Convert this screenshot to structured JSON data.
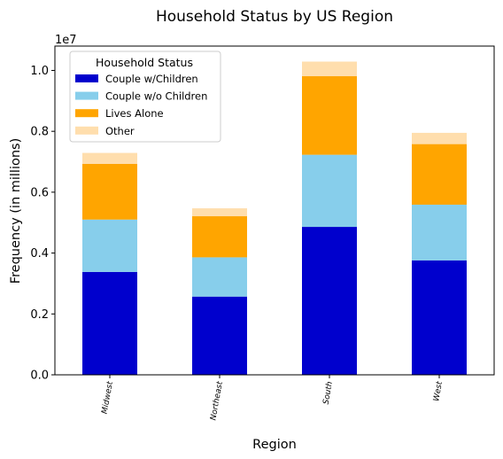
{
  "chart_data": {
    "type": "bar",
    "stacked": true,
    "title": "Household Status by US Region",
    "xlabel": "Region",
    "ylabel": "Frequency (in millions)",
    "offset_text": "1e7",
    "categories": [
      "Midwest",
      "Northeast",
      "South",
      "West"
    ],
    "ylim": [
      0,
      10800000
    ],
    "yticks": [
      0,
      2000000,
      4000000,
      6000000,
      8000000,
      10000000
    ],
    "ytick_labels": [
      "0.0",
      "0.2",
      "0.4",
      "0.6",
      "0.8",
      "1.0"
    ],
    "legend": {
      "title": "Household Status",
      "placement": "upper-left"
    },
    "grid": false,
    "series": [
      {
        "name": "Couple w/Children",
        "color": "#0000cd",
        "values": [
          3380000,
          2570000,
          4860000,
          3760000
        ]
      },
      {
        "name": "Couple w/o Children",
        "color": "#87ceeb",
        "values": [
          1720000,
          1290000,
          2370000,
          1830000
        ]
      },
      {
        "name": "Lives Alone",
        "color": "#ffa500",
        "values": [
          1830000,
          1350000,
          2580000,
          1990000
        ]
      },
      {
        "name": "Other",
        "color": "#ffdead",
        "values": [
          360000,
          260000,
          480000,
          370000
        ]
      }
    ]
  }
}
